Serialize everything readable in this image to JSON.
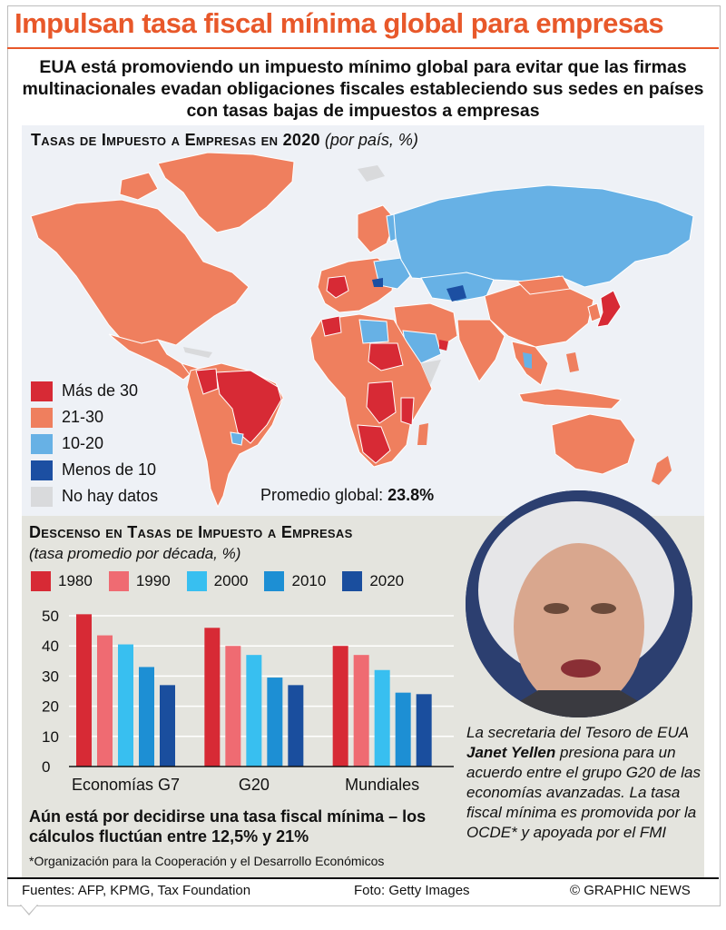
{
  "title": "Impulsan tasa fiscal mínima global para empresas",
  "intro": "EUA está promoviendo un impuesto mínimo global para evitar que las firmas multinacionales evadan obligaciones fiscales estableciendo sus sedes en países con tasas bajas de impuestos a empresas",
  "map": {
    "heading": "Tasas de Impuesto a Empresas en 2020",
    "heading_unit": "(por país, %)",
    "legend": [
      {
        "label": "Más de 30",
        "color": "#d72a35"
      },
      {
        "label": "21-30",
        "color": "#ef7f5e"
      },
      {
        "label": "10-20",
        "color": "#67b1e5"
      },
      {
        "label": "Menos de 10",
        "color": "#1c4fa2"
      },
      {
        "label": "No hay datos",
        "color": "#d9dadc"
      }
    ],
    "average_label": "Promedio global:",
    "average_value": "23.8%"
  },
  "chart_data": {
    "type": "bar",
    "title": "Descenso en Tasas de Impuesto a Empresas",
    "subtitle": "(tasa promedio por década, %)",
    "categories": [
      "Economías G7",
      "G20",
      "Mundiales"
    ],
    "series": [
      {
        "name": "1980",
        "color": "#d72a35",
        "values": [
          50.5,
          46,
          40
        ]
      },
      {
        "name": "1990",
        "color": "#ef6b72",
        "values": [
          43.5,
          40,
          37
        ]
      },
      {
        "name": "2000",
        "color": "#38bff0",
        "values": [
          40.5,
          37,
          32
        ]
      },
      {
        "name": "2010",
        "color": "#1d8fd4",
        "values": [
          33,
          29.5,
          24.5
        ]
      },
      {
        "name": "2020",
        "color": "#1a4e9e",
        "values": [
          27,
          27,
          24
        ]
      }
    ],
    "yticks": [
      0,
      10,
      20,
      30,
      40,
      50
    ],
    "ylim": [
      0,
      50
    ],
    "grid": true,
    "legend_position": "top"
  },
  "note": "Aún está por decidirse una tasa fiscal mínima – los cálculos fluctúan entre 12,5% y 21%",
  "footnote": "*Organización para la Cooperación y el Desarrollo Económicos",
  "caption": {
    "part1": "La secretaria del Tesoro de EUA ",
    "name": "Janet Yellen",
    "part2": " presiona para un acuerdo entre el grupo G20 de las economías avanzadas. La tasa fiscal mínima es promovida por la OCDE* y apoyada por el FMI"
  },
  "footer": {
    "sources": "Fuentes: AFP, KPMG, Tax Foundation",
    "photo": "Foto: Getty Images",
    "credit": "© GRAPHIC NEWS"
  }
}
